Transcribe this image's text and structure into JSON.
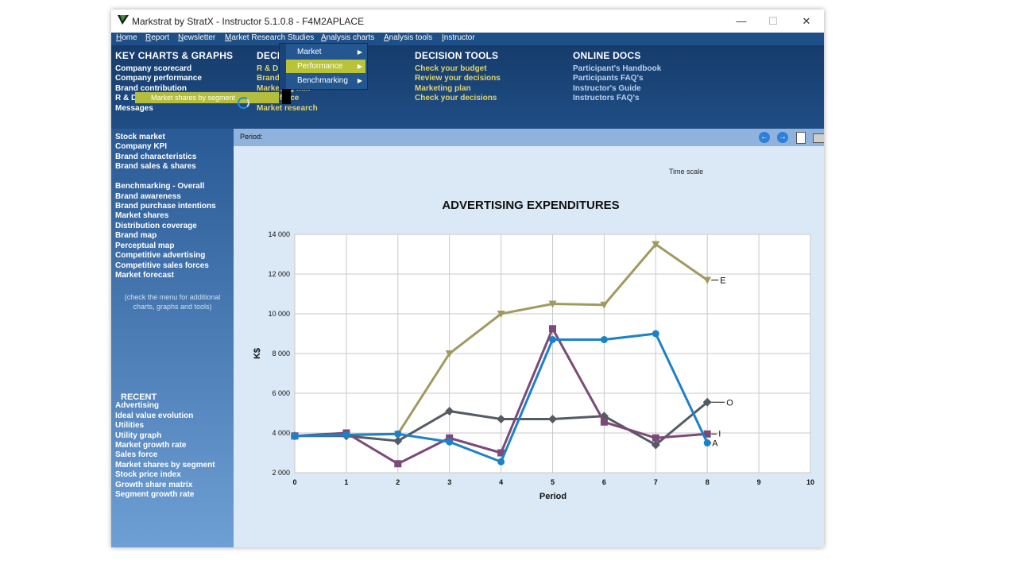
{
  "window": {
    "title": "Markstrat by StratX - Instructor 5.1.0.8 - F4M2APLACE",
    "minimize": "—",
    "maximize": "☐",
    "close": "✕"
  },
  "menubar": [
    "Home",
    "Report",
    "Newsletter",
    "Market Research Studies",
    "Analysis charts",
    "Analysis tools",
    "Instructor"
  ],
  "topnav": {
    "key_charts_title": "KEY CHARTS & GRAPHS",
    "key_charts": [
      "Company scorecard",
      "Company performance",
      "Brand contribution",
      "R & D",
      "Messages"
    ],
    "decisions_title": "DECI",
    "decisions": [
      "R & D",
      "Brand",
      "Marketing mix",
      "Sales force",
      "Market research"
    ],
    "tools_title": "DECISION TOOLS",
    "tools": [
      "Check your budget",
      "Review your decisions",
      "Marketing plan",
      "Check your decisions"
    ],
    "docs_title": "ONLINE DOCS",
    "docs": [
      "Participant's Handbook",
      "Participants FAQ's",
      "Instructor's Guide",
      "Instructors FAQ's"
    ]
  },
  "popup_menu": {
    "items": [
      "Market",
      "Performance",
      "Benchmarking"
    ],
    "hover_item": "Market shares by segment"
  },
  "sidebar": {
    "group1": [
      "Stock market",
      "Company KPI",
      "Brand characteristics",
      "Brand sales & shares"
    ],
    "group2": [
      "Benchmarking - Overall",
      "Brand awareness",
      "Brand purchase intentions",
      "Market shares",
      "Distribution coverage",
      "Brand map",
      "Perceptual map",
      "Competitive advertising",
      "Competitive sales forces",
      "Market forecast"
    ],
    "note": "(check the menu for additional charts, graphs and tools)",
    "recent_title": "RECENT",
    "recent": [
      "Advertising",
      "Ideal value evolution",
      "Utilities",
      "Utility graph",
      "Market growth rate",
      "Sales force",
      "Market shares by segment",
      "Stock price index",
      "Growth share matrix",
      "Segment growth rate"
    ]
  },
  "content": {
    "period_label": "Period:",
    "time_scale": "Time scale"
  },
  "colors": {
    "E": "#a09a60",
    "O": "#555b63",
    "I": "#7b4a78",
    "A": "#1b82c7"
  },
  "chart_data": {
    "type": "line",
    "title": "ADVERTISING EXPENDITURES",
    "xlabel": "Period",
    "ylabel": "K$",
    "xlim": [
      0,
      10
    ],
    "ylim": [
      2000,
      14000
    ],
    "x_ticks": [
      0,
      1,
      2,
      3,
      4,
      5,
      6,
      7,
      8,
      9,
      10
    ],
    "y_ticks": [
      2000,
      4000,
      6000,
      8000,
      10000,
      12000,
      14000
    ],
    "y_tick_labels": [
      "2 000",
      "4 000",
      "6 000",
      "8 000",
      "10 000",
      "12 000",
      "14 000"
    ],
    "grid": true,
    "series": [
      {
        "name": "E",
        "marker": "triangle-down",
        "x": [
          0,
          1,
          2,
          3,
          4,
          5,
          6,
          7,
          8
        ],
        "values": [
          3850,
          3900,
          3950,
          8000,
          10000,
          10500,
          10450,
          13500,
          11700
        ]
      },
      {
        "name": "O",
        "marker": "diamond",
        "x": [
          0,
          1,
          2,
          3,
          4,
          5,
          6,
          7,
          8
        ],
        "values": [
          3850,
          3850,
          3600,
          5100,
          4700,
          4700,
          4850,
          3400,
          5550
        ]
      },
      {
        "name": "I",
        "marker": "square",
        "x": [
          0,
          1,
          2,
          3,
          4,
          5,
          6,
          7,
          8
        ],
        "values": [
          3850,
          4000,
          2450,
          3750,
          3000,
          9250,
          4550,
          3750,
          3950
        ]
      },
      {
        "name": "A",
        "marker": "circle",
        "x": [
          0,
          1,
          2,
          3,
          4,
          5,
          6,
          7,
          8
        ],
        "values": [
          3850,
          3900,
          3950,
          3550,
          2550,
          8700,
          8700,
          9000,
          3500
        ]
      }
    ]
  }
}
